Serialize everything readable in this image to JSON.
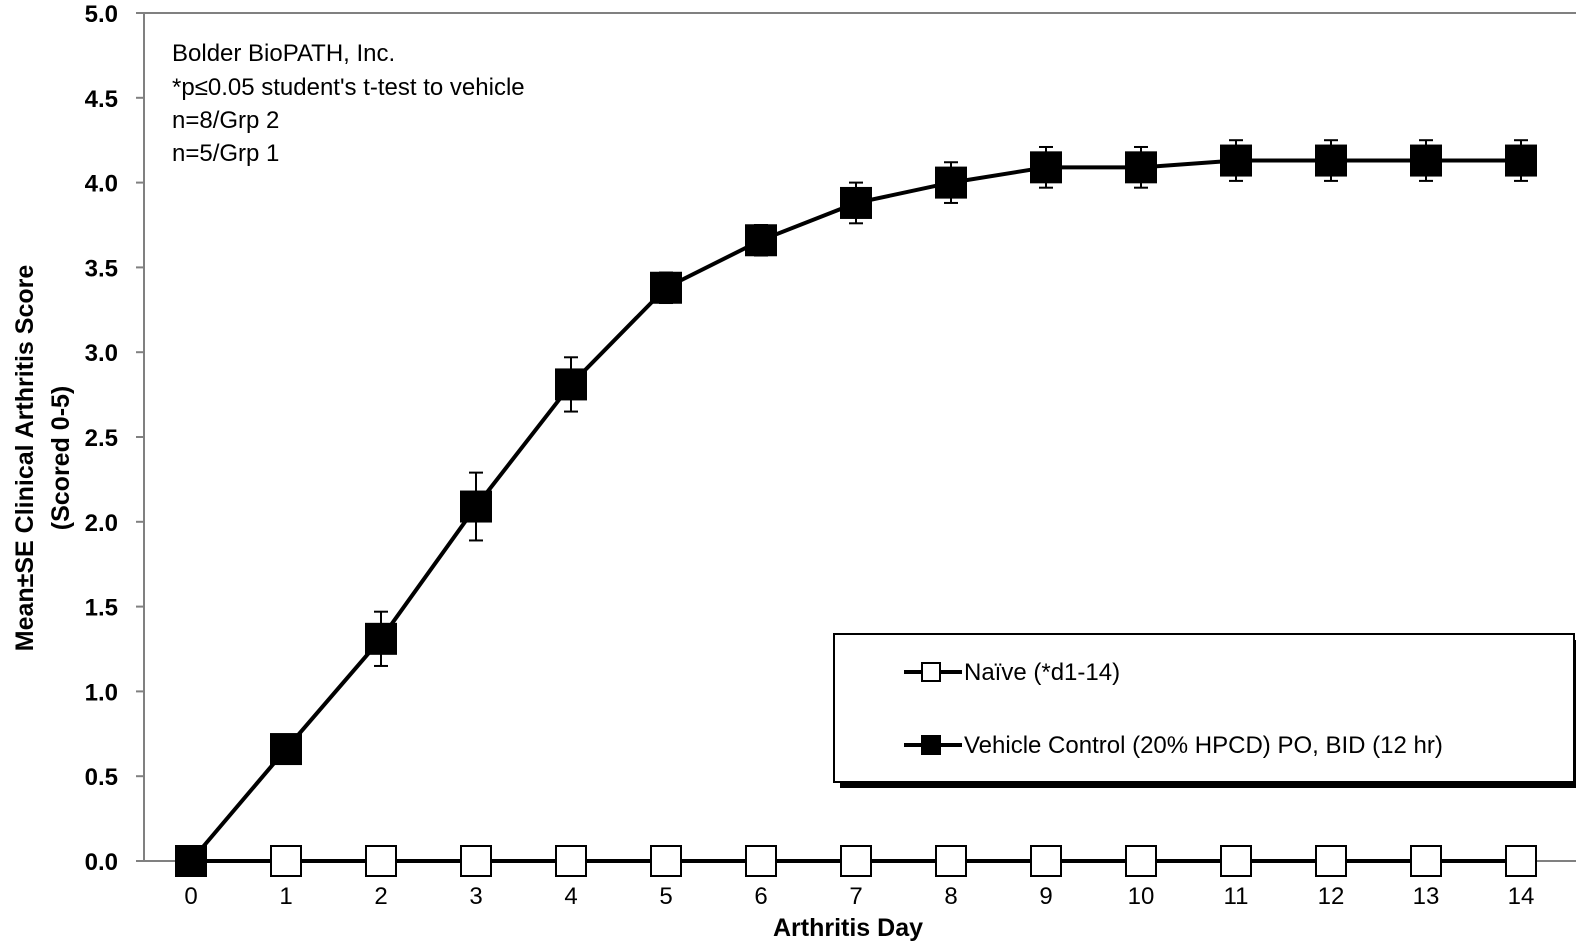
{
  "chart_data": {
    "type": "line",
    "title": "",
    "xlabel": "Arthritis Day",
    "ylabel_line1": "Mean±SE Clinical Arthritis Score",
    "ylabel_line2": "(Scored 0-5)",
    "xlim": [
      0,
      14
    ],
    "ylim": [
      0,
      5
    ],
    "x": [
      0,
      1,
      2,
      3,
      4,
      5,
      6,
      7,
      8,
      9,
      10,
      11,
      12,
      13,
      14
    ],
    "x_ticks": [
      "0",
      "1",
      "2",
      "3",
      "4",
      "5",
      "6",
      "7",
      "8",
      "9",
      "10",
      "11",
      "12",
      "13",
      "14"
    ],
    "y_ticks": [
      "0.0",
      "0.5",
      "1.0",
      "1.5",
      "2.0",
      "2.5",
      "3.0",
      "3.5",
      "4.0",
      "4.5",
      "5.0"
    ],
    "grid": false,
    "legend_position": "lower-right",
    "annotations": [
      "Bolder BioPATH, Inc.",
      "*p≤0.05 student's t-test to vehicle",
      "n=8/Grp 2",
      "n=5/Grp 1"
    ],
    "series": [
      {
        "name": "Naïve (*d1-14)",
        "marker": "open-square",
        "color": "#000000",
        "values": [
          0,
          0,
          0,
          0,
          0,
          0,
          0,
          0,
          0,
          0,
          0,
          0,
          0,
          0,
          0
        ],
        "errors": [
          0,
          0,
          0,
          0,
          0,
          0,
          0,
          0,
          0,
          0,
          0,
          0,
          0,
          0,
          0
        ]
      },
      {
        "name": "Vehicle Control (20% HPCD) PO, BID (12 hr)",
        "marker": "filled-square",
        "color": "#000000",
        "values": [
          0,
          0.66,
          1.31,
          2.09,
          2.81,
          3.38,
          3.66,
          3.88,
          4.0,
          4.09,
          4.09,
          4.13,
          4.13,
          4.13,
          4.13
        ],
        "errors": [
          0,
          0,
          0.16,
          0.2,
          0.16,
          0.09,
          0.09,
          0.12,
          0.12,
          0.12,
          0.12,
          0.12,
          0.12,
          0.12,
          0.12
        ]
      }
    ]
  }
}
